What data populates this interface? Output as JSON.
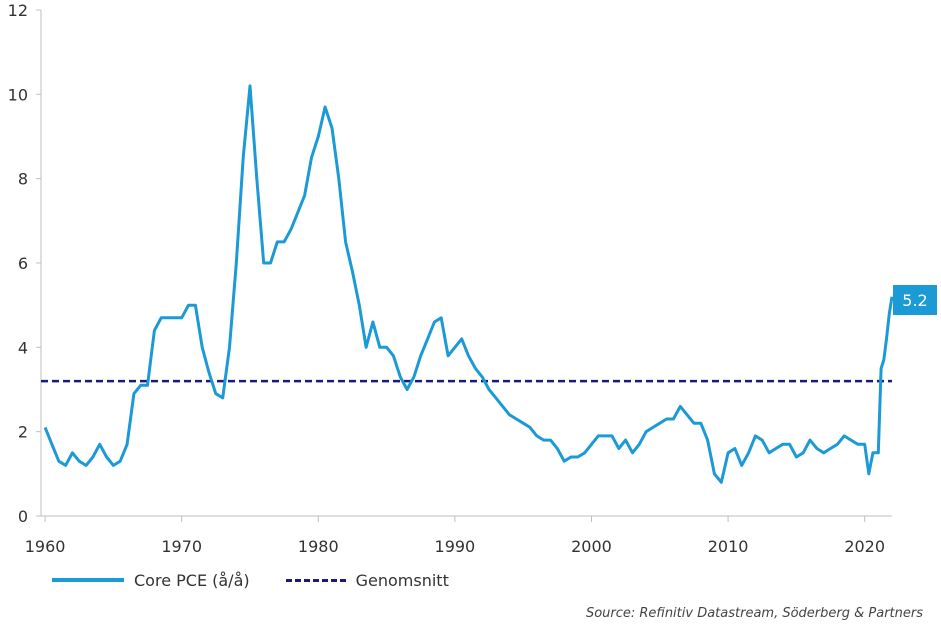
{
  "chart_data": {
    "type": "line",
    "title": "",
    "xlabel": "",
    "ylabel": "",
    "xlim": [
      1959.7,
      2022.0
    ],
    "ylim": [
      0,
      12
    ],
    "x_ticks": [
      "1960",
      "1970",
      "1980",
      "1990",
      "2000",
      "2010",
      "2020"
    ],
    "y_ticks": [
      "0",
      "2",
      "4",
      "6",
      "8",
      "10",
      "12"
    ],
    "grid": false,
    "legend_position": "bottom-left",
    "series": [
      {
        "name": "Core PCE (å/å)",
        "color": "#1c9ad6",
        "x": [
          1960.0,
          1960.5,
          1961.0,
          1961.5,
          1962.0,
          1962.5,
          1963.0,
          1963.5,
          1964.0,
          1964.5,
          1965.0,
          1965.5,
          1966.0,
          1966.5,
          1967.0,
          1967.5,
          1968.0,
          1968.5,
          1969.0,
          1969.5,
          1970.0,
          1970.5,
          1971.0,
          1971.5,
          1972.0,
          1972.5,
          1973.0,
          1973.5,
          1974.0,
          1974.5,
          1975.0,
          1975.5,
          1976.0,
          1976.5,
          1977.0,
          1977.5,
          1978.0,
          1978.5,
          1979.0,
          1979.5,
          1980.0,
          1980.5,
          1981.0,
          1981.5,
          1982.0,
          1982.5,
          1983.0,
          1983.5,
          1984.0,
          1984.5,
          1985.0,
          1985.5,
          1986.0,
          1986.5,
          1987.0,
          1987.5,
          1988.0,
          1988.5,
          1989.0,
          1989.5,
          1990.0,
          1990.5,
          1991.0,
          1991.5,
          1992.0,
          1992.5,
          1993.0,
          1993.5,
          1994.0,
          1994.5,
          1995.0,
          1995.5,
          1996.0,
          1996.5,
          1997.0,
          1997.5,
          1998.0,
          1998.5,
          1999.0,
          1999.5,
          2000.0,
          2000.5,
          2001.0,
          2001.5,
          2002.0,
          2002.5,
          2003.0,
          2003.5,
          2004.0,
          2004.5,
          2005.0,
          2005.5,
          2006.0,
          2006.5,
          2007.0,
          2007.5,
          2008.0,
          2008.5,
          2009.0,
          2009.5,
          2010.0,
          2010.5,
          2011.0,
          2011.5,
          2012.0,
          2012.5,
          2013.0,
          2013.5,
          2014.0,
          2014.5,
          2015.0,
          2015.5,
          2016.0,
          2016.5,
          2017.0,
          2017.5,
          2018.0,
          2018.5,
          2019.0,
          2019.5,
          2020.0,
          2020.3,
          2020.6,
          2021.0,
          2021.2,
          2021.4,
          2021.6,
          2021.8,
          2022.0
        ],
        "values": [
          2.1,
          1.7,
          1.3,
          1.2,
          1.5,
          1.3,
          1.2,
          1.4,
          1.7,
          1.4,
          1.2,
          1.3,
          1.7,
          2.9,
          3.1,
          3.1,
          4.4,
          4.7,
          4.7,
          4.7,
          4.7,
          5.0,
          5.0,
          4.0,
          3.4,
          2.9,
          2.8,
          4.0,
          6.0,
          8.5,
          10.2,
          8.0,
          6.0,
          6.0,
          6.5,
          6.5,
          6.8,
          7.2,
          7.6,
          8.5,
          9.0,
          9.7,
          9.2,
          8.0,
          6.5,
          5.8,
          5.0,
          4.0,
          4.6,
          4.0,
          4.0,
          3.8,
          3.3,
          3.0,
          3.3,
          3.8,
          4.2,
          4.6,
          4.7,
          3.8,
          4.0,
          4.2,
          3.8,
          3.5,
          3.3,
          3.0,
          2.8,
          2.6,
          2.4,
          2.3,
          2.2,
          2.1,
          1.9,
          1.8,
          1.8,
          1.6,
          1.3,
          1.4,
          1.4,
          1.5,
          1.7,
          1.9,
          1.9,
          1.9,
          1.6,
          1.8,
          1.5,
          1.7,
          2.0,
          2.1,
          2.2,
          2.3,
          2.3,
          2.6,
          2.4,
          2.2,
          2.2,
          1.8,
          1.0,
          0.8,
          1.5,
          1.6,
          1.2,
          1.5,
          1.9,
          1.8,
          1.5,
          1.6,
          1.7,
          1.7,
          1.4,
          1.5,
          1.8,
          1.6,
          1.5,
          1.6,
          1.7,
          1.9,
          1.8,
          1.7,
          1.7,
          1.0,
          1.5,
          1.5,
          3.5,
          3.7,
          4.2,
          4.8,
          5.2
        ]
      },
      {
        "name": "Genomsnitt",
        "color": "#1a1a7a",
        "style": "dashed",
        "x": [
          1959.7,
          2022.0
        ],
        "values": [
          3.2,
          3.2
        ]
      }
    ],
    "last_value_label": "5.2",
    "last_value_color": "#1c9ad6"
  },
  "source": "Source: Refinitiv Datastream, Söderberg & Partners"
}
